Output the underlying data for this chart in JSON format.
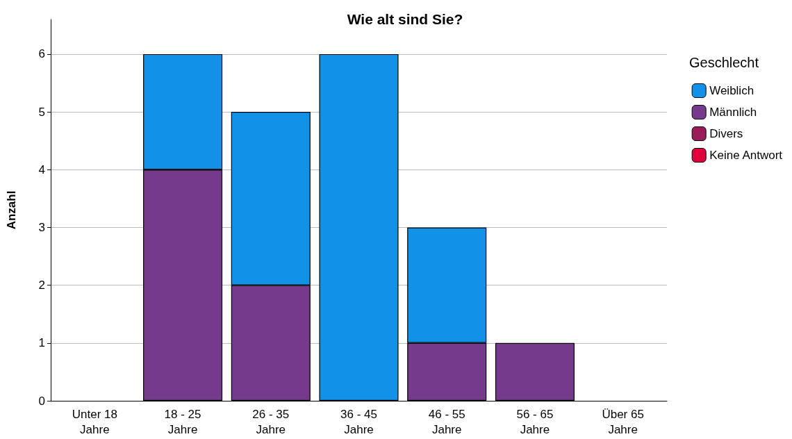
{
  "chart_data": {
    "type": "bar",
    "title": "Wie alt sind Sie?",
    "ylabel": "Anzahl",
    "legend_title": "Geschlecht",
    "categories": [
      "Unter 18\nJahre",
      "18 - 25\nJahre",
      "26 - 35\nJahre",
      "36 - 45\nJahre",
      "46 - 55\nJahre",
      "56 - 65\nJahre",
      "Über 65\nJahre"
    ],
    "stacked": true,
    "series": [
      {
        "name": "Keine Antwort",
        "color": "#e0003c",
        "values": [
          0,
          0,
          0,
          0,
          0,
          0,
          0
        ]
      },
      {
        "name": "Divers",
        "color": "#9b1b5a",
        "values": [
          0,
          0,
          0,
          0,
          0,
          0,
          0
        ]
      },
      {
        "name": "Männlich",
        "color": "#763a8c",
        "values": [
          0,
          4,
          2,
          0,
          1,
          1,
          0
        ]
      },
      {
        "name": "Weiblich",
        "color": "#1192e8",
        "values": [
          0,
          2,
          3,
          6,
          2,
          0,
          0
        ]
      }
    ],
    "ylim": [
      0,
      6.6
    ],
    "yticks": [
      0,
      1,
      2,
      3,
      4,
      5,
      6
    ],
    "grid": "y",
    "legend": "right"
  }
}
